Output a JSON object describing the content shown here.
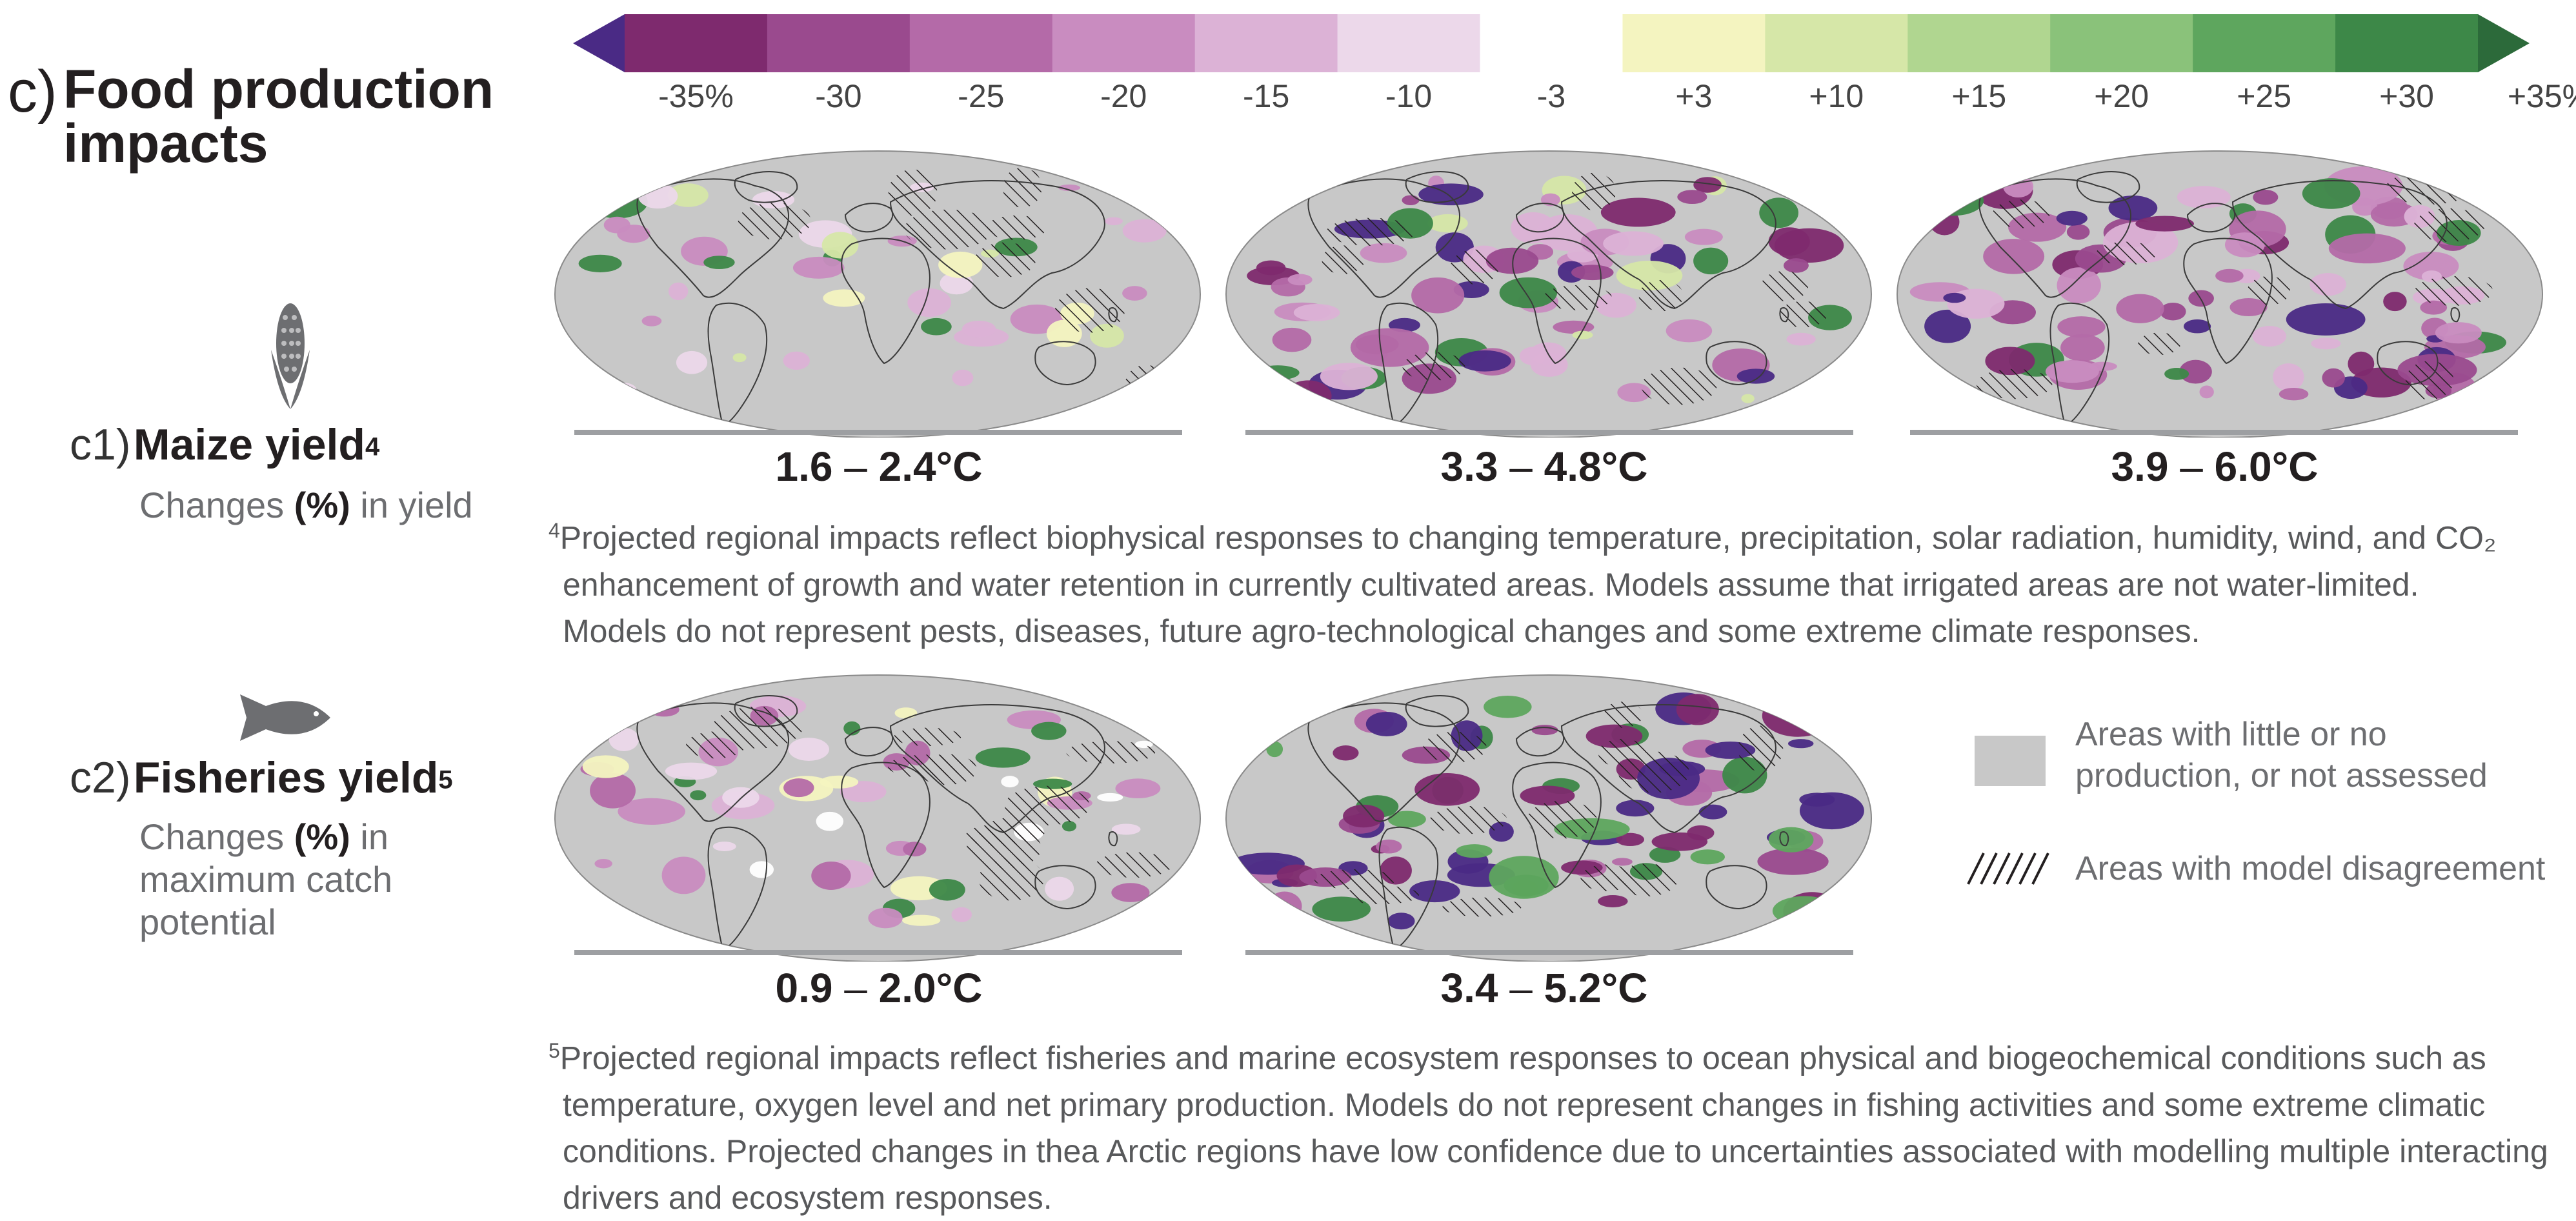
{
  "panel": {
    "letter": "c)",
    "title_line1": "Food production",
    "title_line2": "impacts"
  },
  "colorbar": {
    "ticks": [
      "-35%",
      "-30",
      "-25",
      "-20",
      "-15",
      "-10",
      "-3",
      "+3",
      "+10",
      "+15",
      "+20",
      "+25",
      "+30",
      "+35%"
    ],
    "colors": [
      "#4a2a85",
      "#7e2a6e",
      "#9a4a8e",
      "#b46aa8",
      "#c98cc0",
      "#dcb2d6",
      "#ecd8ea",
      "#ffffff",
      "#f4f4c0",
      "#d6e7a8",
      "#b0d690",
      "#8ac27a",
      "#5ea65e",
      "#3d8848",
      "#2c6a3a"
    ]
  },
  "maize": {
    "number": "c1)",
    "title": "Maize yield",
    "note_ref": "4",
    "desc_a": "Changes ",
    "desc_b": "(%)",
    "desc_c": " in yield",
    "maps": [
      {
        "range_lo": "1.6",
        "range_hi": "2.4°C"
      },
      {
        "range_lo": "3.3",
        "range_hi": "4.8°C"
      },
      {
        "range_lo": "3.9",
        "range_hi": "6.0°C"
      }
    ],
    "footnote_mark": "4",
    "footnote_lines": [
      "Projected regional impacts reflect biophysical responses to changing temperature, precipitation, solar radiation, humidity, wind, and CO₂",
      "enhancement of growth and water retention in currently cultivated areas. Models assume that irrigated areas are not water-limited.",
      "Models do not represent pests, diseases, future agro-technological changes and some extreme climate responses."
    ]
  },
  "fisheries": {
    "number": "c2)",
    "title": "Fisheries yield",
    "note_ref": "5",
    "desc_a": "Changes ",
    "desc_b": "(%)",
    "desc_c": " in",
    "desc_line2": "maximum catch",
    "desc_line3": "potential",
    "maps": [
      {
        "range_lo": "0.9",
        "range_hi": "2.0°C"
      },
      {
        "range_lo": "3.4",
        "range_hi": "5.2°C"
      }
    ],
    "footnote_mark": "5",
    "footnote_lines": [
      "Projected regional impacts reflect fisheries and marine ecosystem responses to ocean physical and biogeochemical conditions such as",
      "temperature, oxygen level and net primary production. Models do not represent changes in fishing activities and some extreme climatic",
      "conditions. Projected changes in thea Arctic regions have low confidence due to uncertainties associated with modelling multiple interacting",
      "drivers and ecosystem responses."
    ]
  },
  "legend": {
    "no_data_line1": "Areas with little or no",
    "no_data_line2": "production, or not assessed",
    "disagreement": "Areas with model disagreement",
    "no_data_color": "#c8c8c8"
  },
  "dash": "–"
}
